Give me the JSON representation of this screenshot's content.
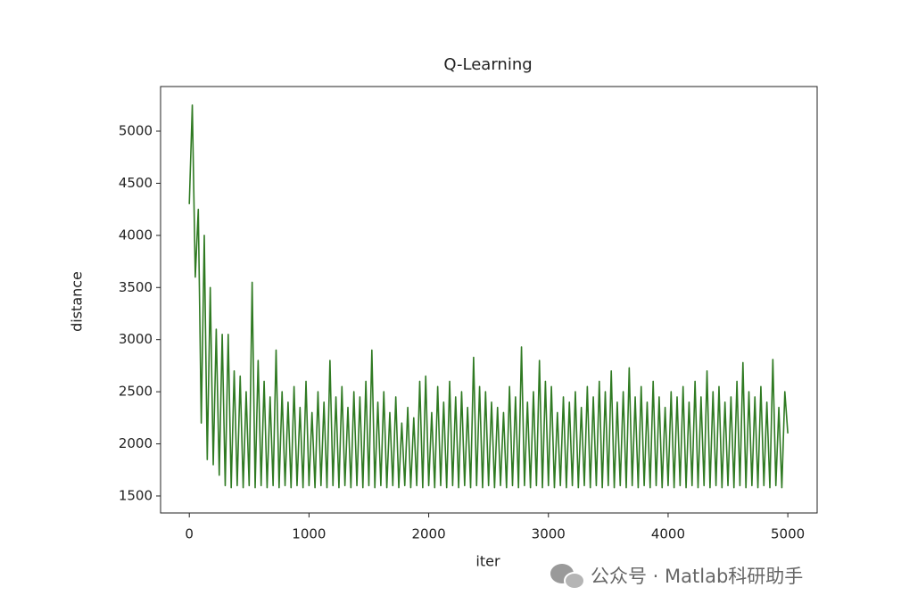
{
  "chart_data": {
    "type": "line",
    "title": "Q-Learning",
    "xlabel": "iter",
    "ylabel": "distance",
    "x": [
      0,
      25,
      50,
      75,
      100,
      125,
      150,
      175,
      200,
      225,
      250,
      275,
      300,
      325,
      350,
      375,
      400,
      425,
      450,
      475,
      500,
      525,
      550,
      575,
      600,
      625,
      650,
      675,
      700,
      725,
      750,
      775,
      800,
      825,
      850,
      875,
      900,
      925,
      950,
      975,
      1000,
      1025,
      1050,
      1075,
      1100,
      1125,
      1150,
      1175,
      1200,
      1225,
      1250,
      1275,
      1300,
      1325,
      1350,
      1375,
      1400,
      1425,
      1450,
      1475,
      1500,
      1525,
      1550,
      1575,
      1600,
      1625,
      1650,
      1675,
      1700,
      1725,
      1750,
      1775,
      1800,
      1825,
      1850,
      1875,
      1900,
      1925,
      1950,
      1975,
      2000,
      2025,
      2050,
      2075,
      2100,
      2125,
      2150,
      2175,
      2200,
      2225,
      2250,
      2275,
      2300,
      2325,
      2350,
      2375,
      2400,
      2425,
      2450,
      2475,
      2500,
      2525,
      2550,
      2575,
      2600,
      2625,
      2650,
      2675,
      2700,
      2725,
      2750,
      2775,
      2800,
      2825,
      2850,
      2875,
      2900,
      2925,
      2950,
      2975,
      3000,
      3025,
      3050,
      3075,
      3100,
      3125,
      3150,
      3175,
      3200,
      3225,
      3250,
      3275,
      3300,
      3325,
      3350,
      3375,
      3400,
      3425,
      3450,
      3475,
      3500,
      3525,
      3550,
      3575,
      3600,
      3625,
      3650,
      3675,
      3700,
      3725,
      3750,
      3775,
      3800,
      3825,
      3850,
      3875,
      3900,
      3925,
      3950,
      3975,
      4000,
      4025,
      4050,
      4075,
      4100,
      4125,
      4150,
      4175,
      4200,
      4225,
      4250,
      4275,
      4300,
      4325,
      4350,
      4375,
      4400,
      4425,
      4450,
      4475,
      4500,
      4525,
      4550,
      4575,
      4600,
      4625,
      4650,
      4675,
      4700,
      4725,
      4750,
      4775,
      4800,
      4825,
      4850,
      4875,
      4900,
      4925,
      4950,
      4975,
      5000
    ],
    "series": [
      {
        "name": "distance",
        "color": "#2f7a22",
        "values": [
          4300,
          5250,
          3600,
          4250,
          2200,
          4000,
          1850,
          3500,
          1800,
          3100,
          1700,
          3050,
          1600,
          3050,
          1580,
          2700,
          1600,
          2650,
          1580,
          2500,
          1600,
          3550,
          1580,
          2800,
          1600,
          2600,
          1580,
          2450,
          1600,
          2900,
          1580,
          2500,
          1600,
          2400,
          1580,
          2550,
          1600,
          2350,
          1580,
          2600,
          1600,
          2300,
          1580,
          2500,
          1600,
          2400,
          1580,
          2800,
          1600,
          2450,
          1580,
          2550,
          1600,
          2350,
          1580,
          2500,
          1600,
          2450,
          1580,
          2600,
          1600,
          2900,
          1580,
          2400,
          1600,
          2500,
          1580,
          2300,
          1600,
          2450,
          1580,
          2200,
          1600,
          2350,
          1580,
          2250,
          1600,
          2600,
          1580,
          2650,
          1600,
          2300,
          1580,
          2550,
          1600,
          2400,
          1580,
          2600,
          1600,
          2450,
          1580,
          2500,
          1600,
          2350,
          1580,
          2830,
          1600,
          2550,
          1580,
          2500,
          1600,
          2400,
          1580,
          2350,
          1600,
          2300,
          1580,
          2550,
          1600,
          2450,
          1580,
          2930,
          1600,
          2400,
          1580,
          2500,
          1600,
          2800,
          1580,
          2600,
          1600,
          2550,
          1580,
          2300,
          1600,
          2450,
          1580,
          2400,
          1600,
          2500,
          1580,
          2350,
          1600,
          2550,
          1580,
          2450,
          1600,
          2600,
          1580,
          2500,
          1600,
          2700,
          1580,
          2400,
          1600,
          2500,
          1580,
          2730,
          1600,
          2450,
          1580,
          2550,
          1600,
          2400,
          1580,
          2600,
          1600,
          2450,
          1580,
          2350,
          1600,
          2500,
          1580,
          2450,
          1600,
          2550,
          1580,
          2400,
          1600,
          2600,
          1580,
          2450,
          1600,
          2700,
          1580,
          2500,
          1600,
          2550,
          1580,
          2400,
          1600,
          2450,
          1580,
          2600,
          1600,
          2780,
          1580,
          2500,
          1600,
          2450,
          1580,
          2550,
          1600,
          2400,
          1580,
          2810,
          1600,
          2350,
          1580,
          2500,
          2100
        ]
      }
    ],
    "xlim": [
      -240,
      5245
    ],
    "ylim": [
      1337,
      5428
    ],
    "xticks": [
      0,
      1000,
      2000,
      3000,
      4000,
      5000
    ],
    "yticks": [
      1500,
      2000,
      2500,
      3000,
      3500,
      4000,
      4500,
      5000
    ],
    "watermark": "公众号 · Matlab科研助手"
  }
}
